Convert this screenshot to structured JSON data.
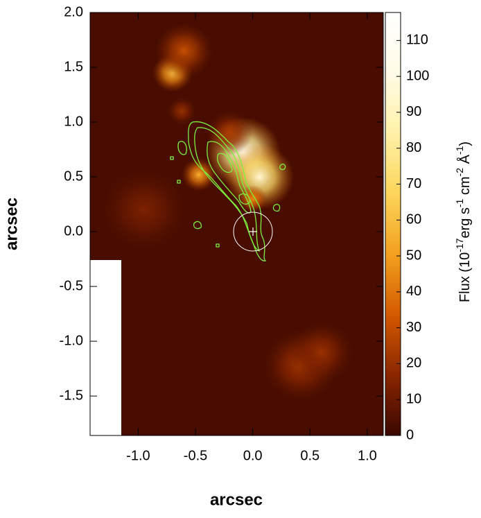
{
  "chart_data": {
    "type": "image",
    "xlabel": "arcsec",
    "ylabel": "arcsec",
    "xlim": [
      -1.42,
      1.14
    ],
    "ylim": [
      -1.86,
      2.0
    ],
    "xticks": [
      {
        "value": -1,
        "label": "-1.0"
      },
      -0.5,
      {
        "value": 0,
        "label": "0.0"
      },
      0.5,
      {
        "value": 1,
        "label": "1.0"
      }
    ],
    "yticks": [
      {
        "value": -1.5,
        "label": "-1.5"
      },
      {
        "value": -1,
        "label": "-1.0"
      },
      -0.5,
      {
        "value": 0,
        "label": "0.0"
      },
      0.5,
      {
        "value": 1,
        "label": "1.0"
      },
      1.5,
      {
        "value": 2,
        "label": "2.0"
      }
    ],
    "background": 3,
    "blobs": {
      "x": [
        -0.08,
        0.06,
        -0.7,
        -0.6,
        -0.47,
        -0.62,
        -0.95,
        0.42,
        0.6,
        0.0,
        -0.2
      ],
      "y": [
        0.72,
        0.5,
        1.45,
        1.65,
        0.52,
        1.1,
        0.2,
        -1.22,
        -1.1,
        0.3,
        0.9
      ],
      "values": [
        110,
        95,
        60,
        30,
        55,
        20,
        14,
        22,
        20,
        45,
        25
      ],
      "sigma": [
        0.13,
        0.12,
        0.07,
        0.1,
        0.06,
        0.05,
        0.15,
        0.13,
        0.11,
        0.05,
        0.08
      ]
    },
    "colorbar": {
      "label": [
        "Flux (10",
        "-17",
        "erg s",
        "-1",
        " cm",
        "-2",
        " Å",
        "-1",
        ")"
      ],
      "lim": [
        0,
        117.8
      ],
      "ticks": [
        0,
        10,
        20,
        30,
        40,
        50,
        60,
        70,
        80,
        90,
        100,
        110
      ],
      "colormap": [
        "#3a0700",
        "#8a2600",
        "#d45a00",
        "#f3a020",
        "#fcd55a",
        "#fff1a8",
        "#fffbe6",
        "#ffffff"
      ]
    }
  }
}
